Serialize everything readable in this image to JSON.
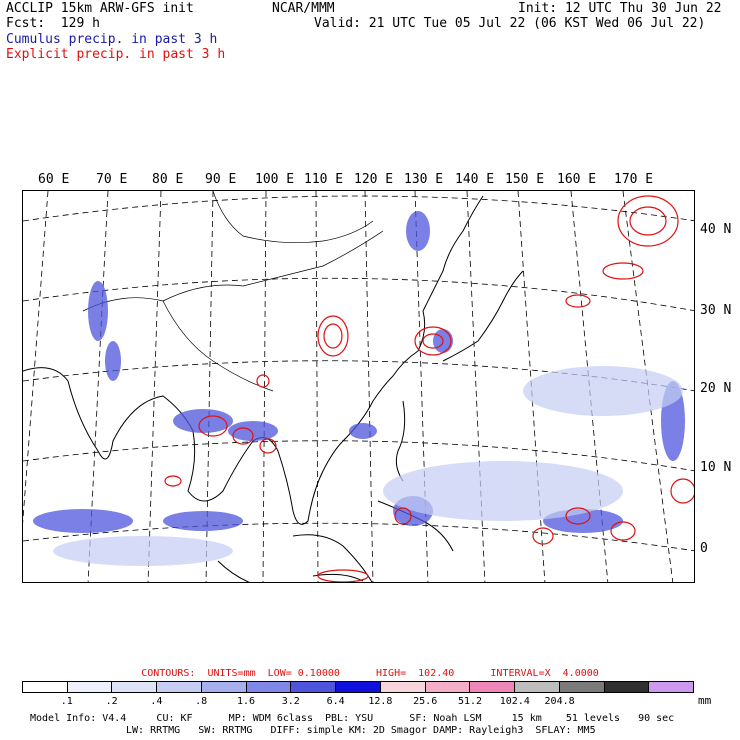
{
  "header": {
    "model": "ACCLIP 15km ARW-GFS init",
    "center": "NCAR/MMM",
    "init": "Init: 12 UTC Thu 30 Jun 22",
    "fcst": "Fcst:  129 h",
    "valid": "Valid: 21 UTC Tue 05 Jul 22 (06 KST Wed 06 Jul 22)",
    "cumulus": "Cumulus precip. in past 3 h",
    "explicit": "Explicit precip. in past 3 h"
  },
  "colors": {
    "cumulus": "#1a1aa6",
    "explicit": "#e01010"
  },
  "longitudes": [
    "60 E",
    "70 E",
    "80 E",
    "90 E",
    "100 E",
    "110 E",
    "120 E",
    "130 E",
    "140 E",
    "150 E",
    "160 E",
    "170 E"
  ],
  "latitudes": [
    "40 N",
    "30 N",
    "20 N",
    "10 N",
    "0"
  ],
  "contours": {
    "text": "CONTOURS:  UNITS=mm  LOW= 0.10000      HIGH=  102.40      INTERVAL=X  4.0000"
  },
  "colorbar": {
    "colors": [
      "#ffffff",
      "#eef0fb",
      "#dfe3f7",
      "#c5cdf3",
      "#a7b0ee",
      "#7f88e6",
      "#4e55dc",
      "#1010dd",
      "#f6d6dc",
      "#f4aec8",
      "#ef86b8",
      "#bdbdbd",
      "#7a7a7a",
      "#303030",
      "#cc99ee"
    ],
    "ticks": [
      ".1",
      ".2",
      ".4",
      ".8",
      "1.6",
      "3.2",
      "6.4",
      "12.8",
      "25.6",
      "51.2",
      "102.4",
      "204.8"
    ],
    "unit": "mm"
  },
  "footer": {
    "line1": "Model Info: V4.4     CU: KF      MP: WDM 6class  PBL: YSU      SF: Noah LSM     15 km    51 levels   90 sec",
    "line2": "LW: RRTMG   SW: RRTMG   DIFF: simple KM: 2D Smagor DAMP: Rayleigh3  SFLAY: MM5"
  }
}
